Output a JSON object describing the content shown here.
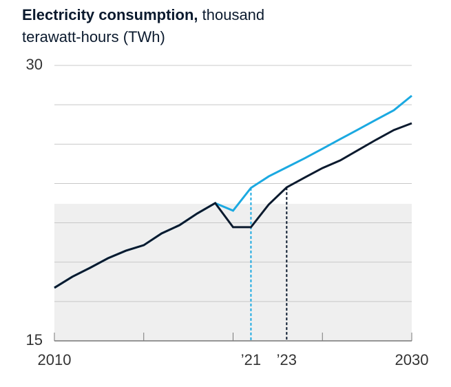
{
  "chart_data": {
    "type": "line",
    "title": "Electricity consumption,",
    "subtitle": "thousand terawatt-hours (TWh)",
    "x": [
      2010,
      2011,
      2012,
      2013,
      2014,
      2015,
      2016,
      2017,
      2018,
      2019,
      2020,
      2021,
      2022,
      2023,
      2024,
      2025,
      2026,
      2027,
      2028,
      2029,
      2030
    ],
    "series": [
      {
        "color": "#1ba9e1",
        "values": [
          17.89,
          18.49,
          18.98,
          19.5,
          19.91,
          20.21,
          20.85,
          21.3,
          21.94,
          22.5,
          22.09,
          23.33,
          23.96,
          24.45,
          24.94,
          25.46,
          25.99,
          26.51,
          27.04,
          27.56,
          28.35
        ]
      },
      {
        "color": "#0b1a2e",
        "values": [
          17.89,
          18.49,
          18.98,
          19.5,
          19.91,
          20.21,
          20.85,
          21.3,
          21.94,
          22.5,
          21.19,
          21.19,
          22.43,
          23.36,
          23.89,
          24.41,
          24.83,
          25.39,
          25.95,
          26.48,
          26.85
        ]
      }
    ],
    "xlim": [
      2010,
      2030
    ],
    "xticks": [
      2010,
      2030
    ],
    "x_minor_ticks": [
      2015,
      2020,
      2025
    ],
    "x_markers": [
      {
        "value": 2021,
        "label": "’21",
        "color": "#1ba9e1"
      },
      {
        "value": 2023,
        "label": "’23",
        "color": "#0b1a2e"
      }
    ],
    "ylim": [
      15,
      30
    ],
    "yticks": [
      15,
      30
    ],
    "grid_lines": [
      17.14,
      19.29,
      21.43,
      23.57,
      25.71,
      27.86
    ],
    "shaded_band": [
      15,
      22.46
    ]
  }
}
